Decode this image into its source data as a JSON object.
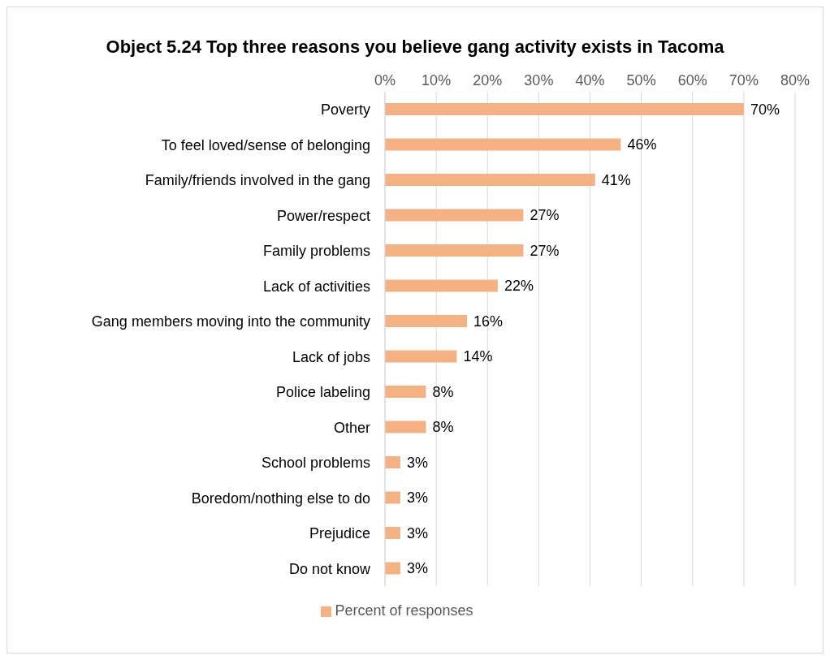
{
  "chart_data": {
    "type": "bar",
    "orientation": "horizontal",
    "title": "Object 5.24 Top three reasons you believe gang activity exists in Tacoma",
    "categories": [
      "Poverty",
      "To feel loved/sense of belonging",
      "Family/friends involved in the gang",
      "Power/respect",
      "Family problems",
      "Lack of activities",
      "Gang members moving into the community",
      "Lack of jobs",
      "Police labeling",
      "Other",
      "School problems",
      "Boredom/nothing else to do",
      "Prejudice",
      "Do not know"
    ],
    "series": [
      {
        "name": "Percent of responses",
        "color": "#f4b183",
        "values": [
          70,
          46,
          41,
          27,
          27,
          22,
          16,
          14,
          8,
          8,
          3,
          3,
          3,
          3
        ],
        "value_labels": [
          "70%",
          "46%",
          "41%",
          "27%",
          "27%",
          "22%",
          "16%",
          "14%",
          "8%",
          "8%",
          "3%",
          "3%",
          "3%",
          "3%"
        ]
      }
    ],
    "xlim": [
      0,
      80
    ],
    "xticks": [
      {
        "value": 0,
        "label": "0%"
      },
      {
        "value": 10,
        "label": "10%"
      },
      {
        "value": 20,
        "label": "20%"
      },
      {
        "value": 30,
        "label": "30%"
      },
      {
        "value": 40,
        "label": "40%"
      },
      {
        "value": 50,
        "label": "50%"
      },
      {
        "value": 60,
        "label": "60%"
      },
      {
        "value": 70,
        "label": "70%"
      },
      {
        "value": 80,
        "label": "80%"
      }
    ],
    "grid": "x",
    "legend": "bottom"
  }
}
